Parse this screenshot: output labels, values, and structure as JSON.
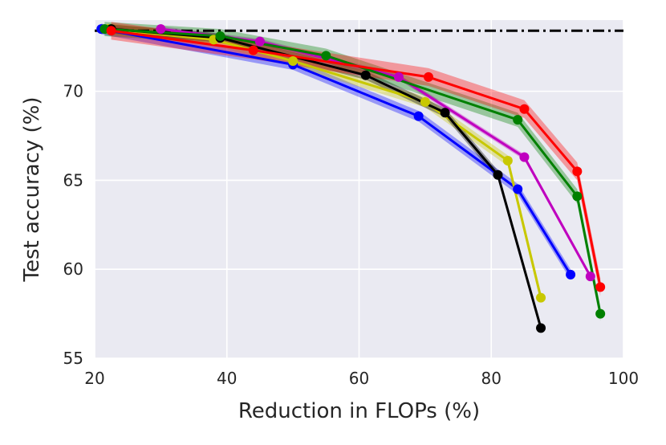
{
  "chart_data": {
    "type": "line",
    "title": "",
    "xlabel": "Reduction in FLOPs (%)",
    "ylabel": "Test accuracy (%)",
    "xlim": [
      20,
      100
    ],
    "ylim": [
      55,
      74
    ],
    "x_ticks": [
      "20",
      "40",
      "60",
      "80",
      "100"
    ],
    "y_ticks": [
      "55",
      "60",
      "65",
      "70"
    ],
    "grid": true,
    "legend": "none",
    "background": "#eaeaf2",
    "baseline": {
      "y": 73.4,
      "color": "#000000",
      "style": "dash-dot"
    },
    "series": [
      {
        "color": "#0000ff",
        "band": 0.3,
        "x": [
          21,
          50,
          69,
          84,
          92
        ],
        "y": [
          73.5,
          71.5,
          68.6,
          64.5,
          59.7
        ]
      },
      {
        "color": "#bf00bf",
        "band": 0.15,
        "x": [
          30,
          45,
          66,
          85,
          95
        ],
        "y": [
          73.5,
          72.8,
          70.8,
          66.3,
          59.6
        ]
      },
      {
        "color": "#c8c800",
        "band": 0.3,
        "x": [
          22,
          38,
          50,
          70,
          82.5,
          87.5
        ],
        "y": [
          73.5,
          72.9,
          71.7,
          69.4,
          66.1,
          58.4
        ]
      },
      {
        "color": "#000000",
        "band": 0.25,
        "x": [
          22.5,
          39,
          61,
          73,
          81,
          87.5
        ],
        "y": [
          73.5,
          73.0,
          70.9,
          68.8,
          65.3,
          56.7
        ]
      },
      {
        "color": "#008000",
        "band": 0.4,
        "x": [
          21.5,
          39,
          55,
          84,
          93,
          96.5
        ],
        "y": [
          73.5,
          73.1,
          72.0,
          68.4,
          64.1,
          57.5
        ]
      },
      {
        "color": "#ff0000",
        "band": 0.5,
        "x": [
          22.5,
          44,
          70.5,
          85,
          93,
          96.5
        ],
        "y": [
          73.4,
          72.3,
          70.8,
          69.0,
          65.5,
          59.0
        ]
      }
    ]
  }
}
